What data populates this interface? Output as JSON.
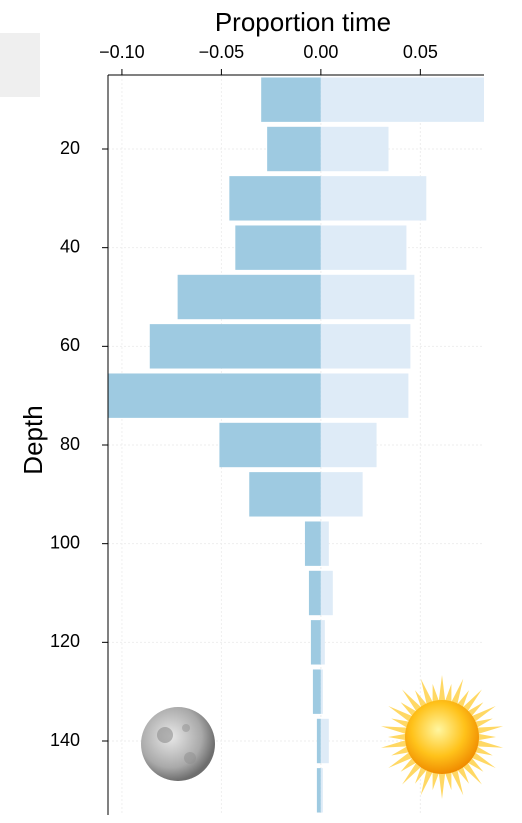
{
  "chart_data": {
    "type": "bar",
    "orientation": "horizontal",
    "x_label": "Proportion time",
    "y_label": "Depth",
    "y": [
      10,
      20,
      30,
      40,
      50,
      60,
      70,
      80,
      90,
      100,
      110,
      120,
      130,
      140,
      150
    ],
    "series": [
      {
        "color": "#9ecae1",
        "values": [
          -0.03,
          -0.027,
          -0.046,
          -0.043,
          -0.072,
          -0.086,
          -0.107,
          -0.051,
          -0.036,
          -0.008,
          -0.006,
          -0.005,
          -0.004,
          -0.002,
          -0.002
        ]
      },
      {
        "color": "#deebf7",
        "values": [
          0.082,
          0.034,
          0.053,
          0.043,
          0.047,
          0.045,
          0.044,
          0.028,
          0.021,
          0.004,
          0.006,
          0.002,
          0.001,
          0.004,
          0.001
        ]
      }
    ],
    "xlim": [
      -0.107,
      0.082
    ],
    "xticks": [
      {
        "value": -0.1,
        "label": "−0.10"
      },
      {
        "value": -0.05,
        "label": "−0.05"
      },
      {
        "value": 0,
        "label": "0.00"
      },
      {
        "value": 0.05,
        "label": "0.05"
      }
    ],
    "ylim": [
      5,
      155
    ],
    "y_inverted": true,
    "yticks": [
      20,
      40,
      60,
      80,
      100,
      120,
      140
    ],
    "grid": true
  }
}
